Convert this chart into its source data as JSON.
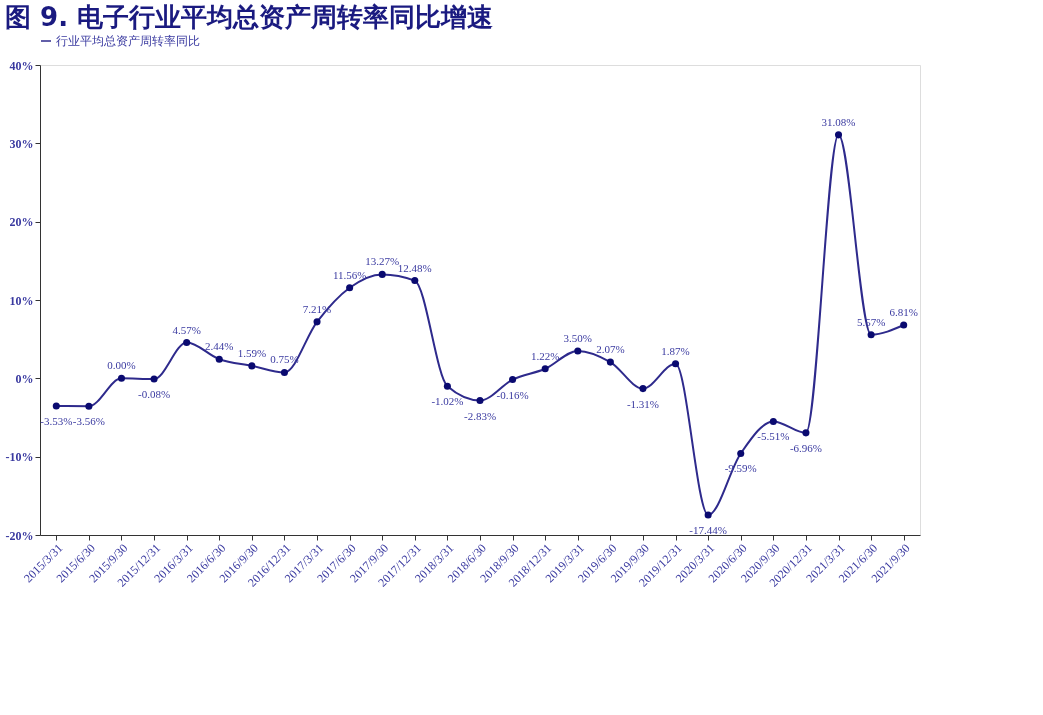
{
  "chart_data": {
    "type": "line",
    "title": "图 9. 电子行业平均总资产周转率同比增速",
    "categories": [
      "2015/3/31",
      "2015/6/30",
      "2015/9/30",
      "2015/12/31",
      "2016/3/31",
      "2016/6/30",
      "2016/9/30",
      "2016/12/31",
      "2017/3/31",
      "2017/6/30",
      "2017/9/30",
      "2017/12/31",
      "2018/3/31",
      "2018/6/30",
      "2018/9/30",
      "2018/12/31",
      "2019/3/31",
      "2019/6/30",
      "2019/9/30",
      "2019/12/31",
      "2020/3/31",
      "2020/6/30",
      "2020/9/30",
      "2020/12/31",
      "2021/3/31",
      "2021/6/30",
      "2021/9/30"
    ],
    "series": [
      {
        "name": "行业平均总资产周转率同比",
        "color": "#2e2a8c",
        "values": [
          -3.53,
          -3.56,
          0.0,
          -0.08,
          4.57,
          2.44,
          1.59,
          0.75,
          7.21,
          11.56,
          13.27,
          12.48,
          -1.02,
          -2.83,
          -0.16,
          1.22,
          3.5,
          2.07,
          -1.31,
          1.87,
          -17.44,
          -9.59,
          -5.51,
          -6.96,
          31.08,
          5.57,
          6.81
        ],
        "value_labels": [
          "-3.53%",
          "-3.56%",
          "0.00%",
          "-0.08%",
          "4.57%",
          "2.44%",
          "1.59%",
          "0.75%",
          "7.21%",
          "11.56%",
          "13.27%",
          "12.48%",
          "-1.02%",
          "-2.83%",
          "-0.16%",
          "1.22%",
          "3.50%",
          "2.07%",
          "-1.31%",
          "1.87%",
          "-17.44%",
          "-9.59%",
          "-5.51%",
          "-6.96%",
          "31.08%",
          "5.57%",
          "6.81%"
        ]
      }
    ],
    "ylim": [
      -20,
      40
    ],
    "yticks": [
      {
        "value": -20,
        "label": "-20%"
      },
      {
        "value": -10,
        "label": "-10%"
      },
      {
        "value": 0,
        "label": "0%"
      },
      {
        "value": 10,
        "label": "10%"
      },
      {
        "value": 20,
        "label": "20%"
      },
      {
        "value": 30,
        "label": "30%"
      },
      {
        "value": 40,
        "label": "40%"
      }
    ],
    "grid": false,
    "legend": "top",
    "marker": "circle",
    "line_style": "solid"
  }
}
